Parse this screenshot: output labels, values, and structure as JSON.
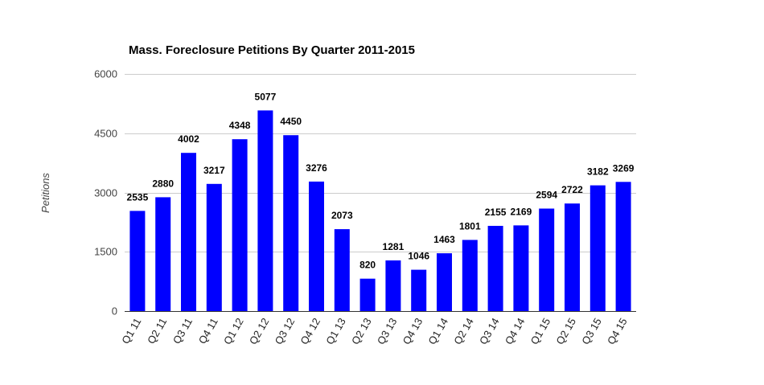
{
  "chart_data": {
    "type": "bar",
    "title": "Mass. Foreclosure Petitions By Quarter 2011-2015",
    "xlabel": "",
    "ylabel": "Petitions",
    "ylim": [
      0,
      6000
    ],
    "yticks": [
      "0",
      "1500",
      "3000",
      "4500",
      "6000"
    ],
    "grid": true,
    "legend": "none",
    "categories": [
      "Q1 11",
      "Q2 11",
      "Q3 11",
      "Q4 11",
      "Q1 12",
      "Q2 12",
      "Q3 12",
      "Q4 12",
      "Q1 13",
      "Q2 13",
      "Q3 13",
      "Q4 13",
      "Q1 14",
      "Q2 14",
      "Q3 14",
      "Q4 14",
      "Q1 15",
      "Q2 15",
      "Q3 15",
      "Q4 15"
    ],
    "values": [
      2535,
      2880,
      4002,
      3217,
      4348,
      5077,
      4450,
      3276,
      2073,
      820,
      1281,
      1046,
      1463,
      1801,
      2155,
      2169,
      2594,
      2722,
      3182,
      3269
    ],
    "colors": {
      "bar": "#0000ff",
      "grid": "#cccccc",
      "axis": "#333333"
    }
  }
}
